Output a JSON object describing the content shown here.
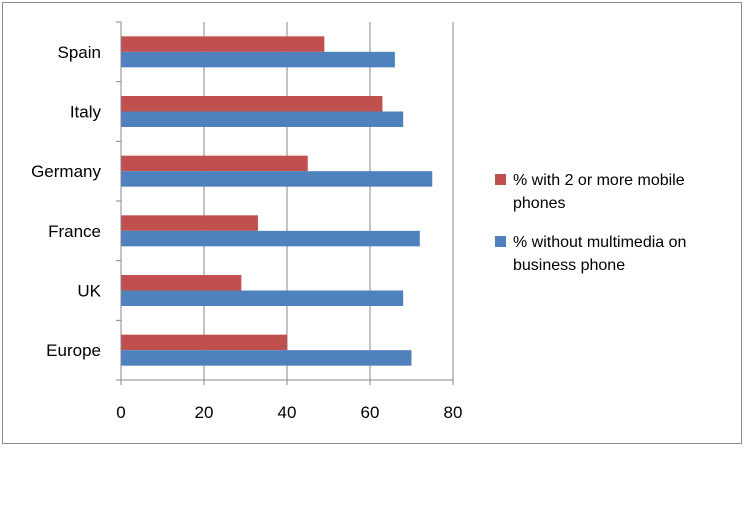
{
  "chart_data": {
    "type": "bar",
    "orientation": "horizontal",
    "categories": [
      "Spain",
      "Italy",
      "Germany",
      "France",
      "UK",
      "Europe"
    ],
    "series": [
      {
        "name": "% with 2 or more mobile phones",
        "legend_lines": [
          "% with 2 or more mobile",
          "phones"
        ],
        "color": "#c0504d",
        "values": [
          49,
          63,
          45,
          33,
          29,
          40
        ]
      },
      {
        "name": "% without multimedia on business phone",
        "legend_lines": [
          "% without multimedia on",
          "business phone"
        ],
        "color": "#4f81bd",
        "values": [
          66,
          68,
          75,
          72,
          68,
          70
        ]
      }
    ],
    "xlim": [
      0,
      80
    ],
    "xticks": [
      0,
      20,
      40,
      60,
      80
    ],
    "xtick_labels": [
      "0",
      "20",
      "40",
      "60",
      "80"
    ],
    "grid": true,
    "legend_position": "right",
    "title": "",
    "xlabel": "",
    "ylabel": ""
  }
}
